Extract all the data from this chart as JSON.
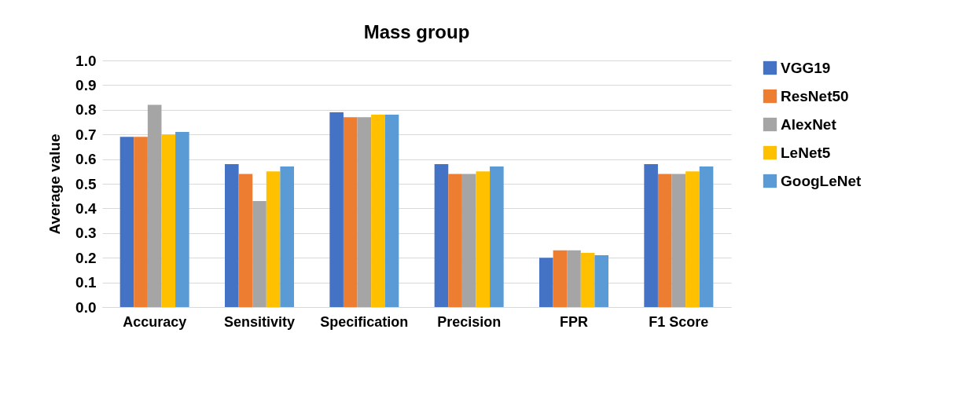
{
  "chart_data": {
    "type": "bar",
    "title": "Mass group",
    "ylabel": "Average value",
    "categories": [
      "Accuracy",
      "Sensitivity",
      "Specification",
      "Precision",
      "FPR",
      "F1 Score"
    ],
    "series": [
      {
        "name": "VGG19",
        "color": "#4472c4",
        "values": [
          0.69,
          0.58,
          0.79,
          0.58,
          0.2,
          0.58
        ]
      },
      {
        "name": "ResNet50",
        "color": "#ed7d31",
        "values": [
          0.69,
          0.54,
          0.77,
          0.54,
          0.23,
          0.54
        ]
      },
      {
        "name": "AlexNet",
        "color": "#a5a5a5",
        "values": [
          0.82,
          0.43,
          0.77,
          0.54,
          0.23,
          0.54
        ]
      },
      {
        "name": "LeNet5",
        "color": "#ffc000",
        "values": [
          0.7,
          0.55,
          0.78,
          0.55,
          0.22,
          0.55
        ]
      },
      {
        "name": "GoogLeNet",
        "color": "#5b9bd5",
        "values": [
          0.71,
          0.57,
          0.78,
          0.57,
          0.21,
          0.57
        ]
      }
    ],
    "ylim": [
      0,
      1
    ],
    "yticks": [
      {
        "value": 0,
        "label": "0.0"
      },
      0.1,
      0.2,
      0.3,
      0.4,
      0.5,
      0.6,
      0.7,
      0.8,
      0.9,
      {
        "value": 1,
        "label": "1.0"
      }
    ],
    "grid": "y",
    "legend": "right"
  }
}
